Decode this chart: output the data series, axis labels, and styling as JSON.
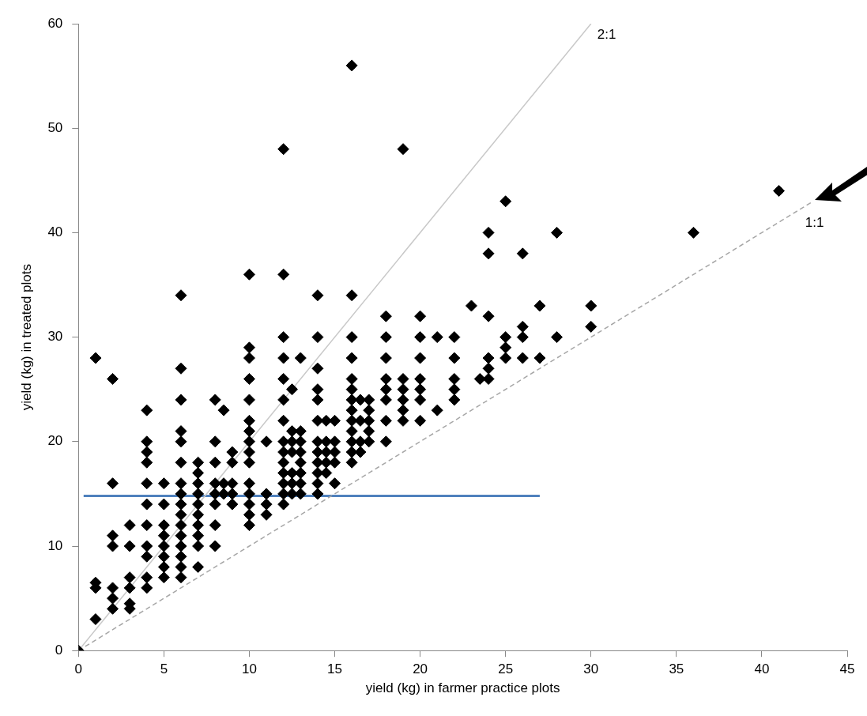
{
  "chart_data": {
    "type": "scatter",
    "xlabel": "yield (kg) in farmer practice plots",
    "ylabel": "yield (kg) in treated plots",
    "xlim": [
      0,
      45
    ],
    "xticks": [
      0,
      5,
      10,
      15,
      20,
      25,
      30,
      35,
      40,
      45
    ],
    "ylim": [
      0,
      60
    ],
    "yticks": [
      0,
      10,
      20,
      30,
      40,
      50,
      60
    ],
    "grid": false,
    "legend": false,
    "marker": "diamond",
    "series": [
      {
        "type": "scatter",
        "color": "#000000",
        "x": [
          0,
          1,
          1,
          1,
          1,
          2,
          2,
          2,
          2,
          2,
          2,
          2,
          3,
          3,
          3,
          3,
          3,
          3,
          4,
          4,
          4,
          4,
          4,
          4,
          4,
          4,
          4,
          4,
          4,
          5,
          5,
          5,
          5,
          5,
          5,
          5,
          5,
          6,
          6,
          6,
          6,
          6,
          6,
          6,
          6,
          6,
          6,
          6,
          6,
          6,
          6,
          6,
          6,
          7,
          7,
          7,
          7,
          7,
          7,
          7,
          7,
          7,
          7,
          8,
          8,
          8,
          8,
          8,
          8,
          8,
          8,
          8.5,
          8.5,
          8.5,
          9,
          9,
          9,
          9,
          9,
          10,
          10,
          10,
          10,
          10,
          10,
          10,
          10,
          10,
          10,
          10,
          10,
          10,
          10,
          10,
          11,
          11,
          11,
          11,
          12,
          12,
          12,
          12,
          12,
          12,
          12,
          12,
          12,
          12,
          12,
          12,
          12,
          12,
          12.5,
          12.5,
          12.5,
          12.5,
          12.5,
          12.5,
          12.5,
          13,
          13,
          13,
          13,
          13,
          13,
          13,
          13,
          14,
          14,
          14,
          14,
          14,
          14,
          14,
          14,
          14,
          14,
          14,
          14,
          14.5,
          14.5,
          14.5,
          14.5,
          14.5,
          15,
          15,
          15,
          15,
          15,
          16,
          16,
          16,
          16,
          16,
          16,
          16,
          16,
          16,
          16,
          16,
          16,
          16,
          16.5,
          16.5,
          16.5,
          16.5,
          17,
          17,
          17,
          17,
          17,
          18,
          18,
          18,
          18,
          18,
          18,
          18,
          18,
          19,
          19,
          19,
          19,
          19,
          19,
          20,
          20,
          20,
          20,
          20,
          20,
          20,
          21,
          21,
          22,
          22,
          22,
          22,
          22,
          23,
          23.5,
          24,
          24,
          24,
          24,
          24,
          24,
          25,
          25,
          25,
          25,
          26,
          26,
          26,
          26,
          27,
          27,
          28,
          28,
          30,
          30,
          36,
          41
        ],
        "values": [
          0,
          28,
          6.5,
          6,
          3,
          26,
          16,
          11,
          10,
          6,
          5,
          4,
          12,
          10,
          7,
          6,
          4.5,
          4,
          23,
          20,
          19,
          18,
          16,
          14,
          12,
          10,
          9,
          7,
          6,
          16,
          14,
          12,
          11,
          10,
          9,
          8,
          7,
          34,
          27,
          24,
          21,
          20,
          18,
          16,
          15,
          14,
          13,
          12,
          11,
          10,
          9,
          8,
          7,
          18,
          17,
          16,
          15,
          14,
          13,
          12,
          11,
          10,
          8,
          24,
          20,
          18,
          16,
          15,
          14,
          12,
          10,
          23,
          16,
          15,
          19,
          18,
          16,
          15,
          14,
          36,
          29,
          28,
          26,
          24,
          22,
          21,
          20,
          19,
          18,
          16,
          15,
          14,
          13,
          12,
          20,
          15,
          14,
          13,
          48,
          36,
          30,
          28,
          26,
          24,
          22,
          20,
          19,
          18,
          17,
          16,
          15,
          14,
          25,
          21,
          20,
          19,
          17,
          16,
          15,
          28,
          21,
          20,
          19,
          18,
          17,
          16,
          15,
          34,
          30,
          27,
          25,
          24,
          22,
          20,
          19,
          18,
          17,
          16,
          15,
          22,
          20,
          19,
          18,
          17,
          22,
          20,
          19,
          18,
          16,
          56,
          34,
          30,
          28,
          26,
          25,
          24,
          23,
          22,
          21,
          20,
          19,
          18,
          24,
          22,
          20,
          19,
          24,
          23,
          22,
          21,
          20,
          32,
          30,
          28,
          26,
          25,
          24,
          22,
          20,
          48,
          26,
          25,
          24,
          23,
          22,
          32,
          30,
          28,
          26,
          25,
          24,
          22,
          30,
          23,
          30,
          28,
          26,
          25,
          24,
          33,
          26,
          40,
          38,
          32,
          28,
          27,
          26,
          43,
          30,
          29,
          28,
          38,
          31,
          30,
          28,
          33,
          28,
          40,
          30,
          33,
          31,
          40,
          44
        ]
      },
      {
        "type": "line",
        "name": "2:1",
        "color": "#c8c8c8",
        "line_style": "solid",
        "marker": "none",
        "x": [
          0,
          30
        ],
        "values": [
          0,
          60
        ]
      },
      {
        "type": "line",
        "name": "1:1",
        "color": "#a6a6a6",
        "line_style": "dashed",
        "marker": "none",
        "x": [
          0,
          43
        ],
        "values": [
          0,
          43
        ]
      },
      {
        "type": "line",
        "color": "#4f81bd",
        "line_style": "solid",
        "marker": "none",
        "x": [
          0.3,
          27
        ],
        "values": [
          14.8,
          14.8
        ]
      }
    ]
  }
}
